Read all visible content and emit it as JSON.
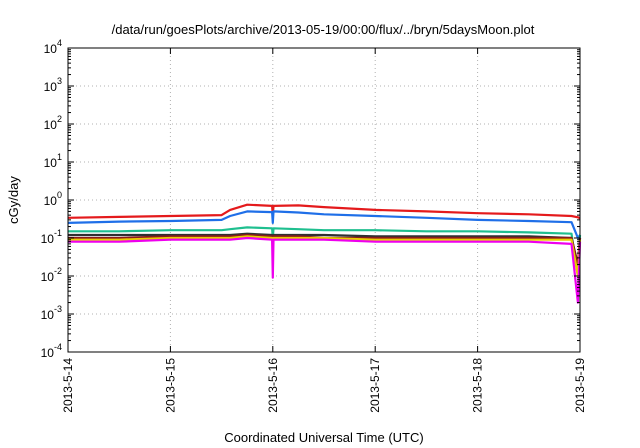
{
  "chart_data": {
    "type": "line",
    "title": "/data/run/goesPlots/archive/2013-05-19/00:00/flux/../bryn/5daysMoon.plot",
    "xlabel": "Coordinated Universal Time (UTC)",
    "ylabel": "cGy/day",
    "y_scale": "log",
    "ylim": [
      0.0001,
      10000
    ],
    "xlim": [
      "2013-05-14",
      "2013-05-19"
    ],
    "x_tick_labels": [
      "2013-5-14",
      "2013-5-15",
      "2013-5-16",
      "2013-5-17",
      "2013-5-18",
      "2013-5-19"
    ],
    "y_ticks": [
      {
        "mantissa": "10",
        "exponent": "-4"
      },
      {
        "mantissa": "10",
        "exponent": "-3"
      },
      {
        "mantissa": "10",
        "exponent": "-2"
      },
      {
        "mantissa": "10",
        "exponent": "-1"
      },
      {
        "mantissa": "10",
        "exponent": "0"
      },
      {
        "mantissa": "10",
        "exponent": "1"
      },
      {
        "mantissa": "10",
        "exponent": "2"
      },
      {
        "mantissa": "10",
        "exponent": "3"
      },
      {
        "mantissa": "10",
        "exponent": "4"
      }
    ],
    "grid": true,
    "x": [
      "2013-05-14",
      "2013-05-14T12:00",
      "2013-05-15",
      "2013-05-15T12:00",
      "2013-05-15T14:00",
      "2013-05-15T18:00",
      "2013-05-15T23:50",
      "2013-05-16",
      "2013-05-16T00:10",
      "2013-05-16T06:00",
      "2013-05-16T12:00",
      "2013-05-17",
      "2013-05-17T12:00",
      "2013-05-18",
      "2013-05-18T12:00",
      "2013-05-18T22:00",
      "2013-05-18T23:30",
      "2013-05-19"
    ],
    "series": [
      {
        "color": "#e41a1c",
        "values": [
          0.34,
          0.36,
          0.38,
          0.4,
          0.55,
          0.75,
          0.7,
          0.4,
          0.7,
          0.72,
          0.65,
          0.55,
          0.5,
          0.45,
          0.42,
          0.38,
          0.35,
          0.33
        ]
      },
      {
        "color": "#1f6fe8",
        "values": [
          0.25,
          0.27,
          0.28,
          0.3,
          0.38,
          0.5,
          0.48,
          0.25,
          0.5,
          0.47,
          0.42,
          0.38,
          0.34,
          0.3,
          0.28,
          0.26,
          0.1,
          0.12
        ]
      },
      {
        "color": "#1fbf8f",
        "values": [
          0.15,
          0.15,
          0.16,
          0.16,
          0.17,
          0.19,
          0.18,
          0.1,
          0.18,
          0.17,
          0.16,
          0.16,
          0.15,
          0.15,
          0.14,
          0.13,
          0.01,
          0.12
        ]
      },
      {
        "color": "#303030",
        "values": [
          0.12,
          0.12,
          0.12,
          0.12,
          0.12,
          0.13,
          0.12,
          0.08,
          0.12,
          0.12,
          0.12,
          0.11,
          0.11,
          0.11,
          0.11,
          0.1,
          0.02,
          0.1
        ]
      },
      {
        "color": "#8b1a1a",
        "values": [
          0.1,
          0.1,
          0.11,
          0.11,
          0.11,
          0.12,
          0.11,
          0.07,
          0.11,
          0.11,
          0.1,
          0.1,
          0.1,
          0.1,
          0.1,
          0.1,
          0.02,
          0.1
        ]
      },
      {
        "color": "#e8d000",
        "values": [
          0.09,
          0.09,
          0.1,
          0.1,
          0.1,
          0.11,
          0.1,
          0.06,
          0.1,
          0.1,
          0.1,
          0.09,
          0.09,
          0.09,
          0.09,
          0.09,
          0.01,
          0.09
        ]
      },
      {
        "color": "#ee00ee",
        "values": [
          0.08,
          0.08,
          0.09,
          0.09,
          0.09,
          0.1,
          0.09,
          0.009,
          0.09,
          0.09,
          0.09,
          0.08,
          0.08,
          0.08,
          0.08,
          0.07,
          0.002,
          0.08
        ]
      }
    ]
  }
}
